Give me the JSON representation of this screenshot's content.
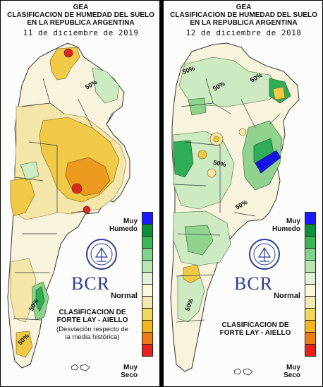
{
  "panels": [
    {
      "header": {
        "gea": "GEA",
        "line1": "CLASIFICACION DE HUMEDAD DEL SUELO",
        "line2": "EN LA REPUBLICA ARGENTINA",
        "date": "11 de diciembre de 2019"
      },
      "legend": {
        "top_line1": "Muy",
        "top_line2": "Humedo",
        "middle": "Normal",
        "bottom_line1": "Muy",
        "bottom_line2": "Seco"
      },
      "logo_text": "BCR",
      "classification": {
        "line1": "CLASIFICACION DE",
        "line2": "FORTE LAY - AIELLO",
        "note1": "(Desviación respecto de",
        "note2": "la media histórica)"
      },
      "contour_labels": [
        "50%",
        "50%",
        "50%"
      ]
    },
    {
      "header": {
        "gea": "GEA",
        "line1": "CLASIFICACION DE HUMEDAD DEL SUELO",
        "line2": "EN LA REPUBLICA ARGENTINA",
        "date": "12 de diciembre de 2018"
      },
      "legend": {
        "top_line1": "Muy",
        "top_line2": "Humedo",
        "middle": "Normal",
        "bottom_line1": "Muy",
        "bottom_line2": "Seco"
      },
      "logo_text": "BCR",
      "classification": {
        "line1": "CLASIFICACION DE",
        "line2": "FORTE LAY - AIELLO"
      },
      "contour_labels": [
        "50%",
        "50%",
        "50%",
        "50%",
        "50%",
        "50%"
      ]
    }
  ],
  "scale_colors": [
    "#1a1aff",
    "#0a8f3a",
    "#3cb556",
    "#7fd38a",
    "#b7e6b4",
    "#e2f2d6",
    "#fbf7dc",
    "#f3e8b4",
    "#f0d85c",
    "#f2b51a",
    "#f07a15",
    "#e8211c"
  ],
  "map_colors": {
    "normal": "#f7f3dc",
    "wet_light": "#cdeac3",
    "wet_mid": "#8fd38f",
    "wet_strong": "#2fae57",
    "wet_max": "#1414e0",
    "dry_light": "#f3e6a8",
    "dry_mid": "#f0c947",
    "dry_strong": "#ec9a1f",
    "dry_max": "#d82a1c"
  }
}
